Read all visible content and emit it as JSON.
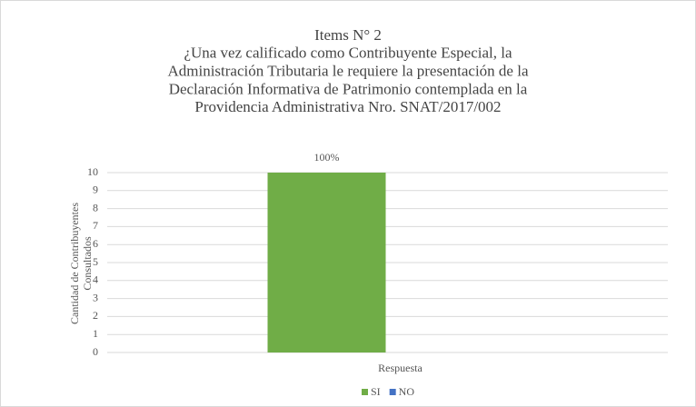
{
  "chart_data": {
    "type": "bar",
    "title": [
      "Items N° 2",
      "¿Una vez calificado como Contribuyente Especial, la",
      "Administración Tributaria le requiere la presentación de la",
      "Declaración Informativa de Patrimonio contemplada en la",
      "Providencia Administrativa  Nro. SNAT/2017/002"
    ],
    "y_label": [
      "Cantidad de Contribuyentes",
      "Consultados"
    ],
    "categories": [
      "Respuesta"
    ],
    "series": [
      {
        "name": "SI",
        "color": "#70ad47",
        "values": [
          10
        ]
      },
      {
        "name": "NO",
        "color": "#4472c4",
        "values": [
          0
        ]
      }
    ],
    "annotations": [
      "100%"
    ],
    "ylim": [
      0,
      10
    ],
    "yticks": [
      0,
      1,
      2,
      3,
      4,
      5,
      6,
      7,
      8,
      9,
      10
    ],
    "grid": true,
    "legend": "bottom"
  }
}
